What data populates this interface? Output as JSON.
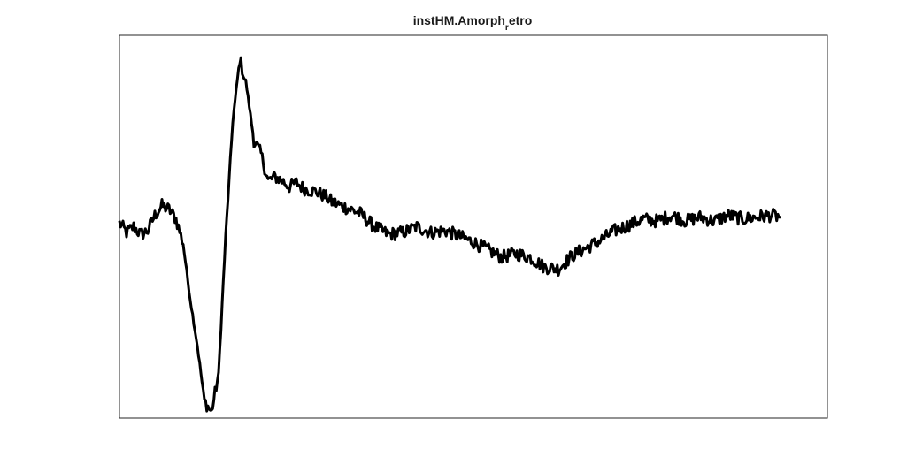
{
  "chart_data": {
    "type": "line",
    "title": {
      "main": "instHM.Amorph",
      "subscript": "r",
      "suffix": "etro"
    },
    "xlabel": "",
    "ylabel": "",
    "xlim": [
      0,
      1000
    ],
    "ylim": [
      -1.0,
      1.0
    ],
    "grid": false,
    "axis_ticks": false,
    "line_color": "#000000",
    "series": [
      {
        "x": [
          0,
          10,
          20,
          30,
          40,
          50,
          60,
          70,
          80,
          90,
          100,
          110,
          120,
          130,
          140,
          150,
          160,
          170,
          180,
          190,
          200,
          210,
          220,
          230,
          240,
          250,
          260,
          270,
          280,
          290,
          300,
          320,
          340,
          360,
          380,
          400,
          420,
          440,
          460,
          480,
          500,
          520,
          540,
          560,
          580,
          600,
          620,
          640,
          660,
          680,
          700,
          720,
          740,
          760,
          780,
          800,
          820,
          840,
          860,
          880,
          900,
          920,
          935
        ],
        "y": [
          0.02,
          -0.03,
          0.0,
          -0.04,
          -0.02,
          0.06,
          0.11,
          0.09,
          0.04,
          -0.09,
          -0.38,
          -0.62,
          -0.91,
          -0.97,
          -0.77,
          -0.05,
          0.55,
          0.88,
          0.72,
          0.45,
          0.38,
          0.24,
          0.26,
          0.24,
          0.21,
          0.23,
          0.2,
          0.19,
          0.18,
          0.16,
          0.13,
          0.1,
          0.07,
          0.0,
          -0.04,
          -0.03,
          0.0,
          -0.03,
          -0.02,
          -0.05,
          -0.08,
          -0.12,
          -0.16,
          -0.14,
          -0.16,
          -0.21,
          -0.22,
          -0.15,
          -0.11,
          -0.07,
          -0.02,
          0.01,
          0.04,
          0.03,
          0.06,
          0.03,
          0.05,
          0.03,
          0.06,
          0.04,
          0.05,
          0.06,
          0.05
        ]
      }
    ]
  }
}
